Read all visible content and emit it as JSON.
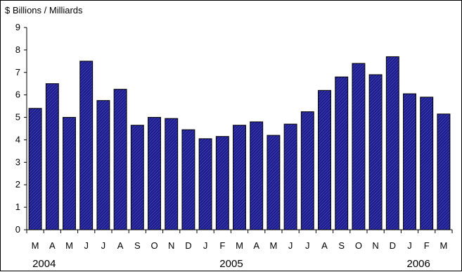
{
  "chart_data": {
    "type": "bar",
    "unit_label": "$ Billions / Milliards",
    "categories": [
      "M",
      "A",
      "M",
      "J",
      "J",
      "A",
      "S",
      "O",
      "N",
      "D",
      "J",
      "F",
      "M",
      "A",
      "M",
      "J",
      "J",
      "A",
      "S",
      "O",
      "N",
      "D",
      "J",
      "F",
      "M"
    ],
    "values": [
      5.4,
      6.5,
      5.0,
      7.5,
      5.75,
      6.25,
      4.65,
      5.0,
      4.95,
      4.45,
      4.05,
      4.15,
      4.65,
      4.8,
      4.2,
      4.7,
      5.25,
      6.2,
      6.8,
      7.4,
      6.9,
      7.7,
      6.05,
      5.9,
      5.15
    ],
    "ylim": [
      0,
      9
    ],
    "yticks": [
      "0",
      "1",
      "2",
      "3",
      "4",
      "5",
      "6",
      "7",
      "8",
      "9"
    ],
    "year_labels": [
      {
        "label": "2004",
        "category_index": 0
      },
      {
        "label": "2005",
        "category_index": 11
      },
      {
        "label": "2006",
        "category_index": 22
      }
    ],
    "bar_color": "#1f1f8f",
    "bar_pattern": "diagonal-hatch",
    "grid": false,
    "legend": "none"
  }
}
